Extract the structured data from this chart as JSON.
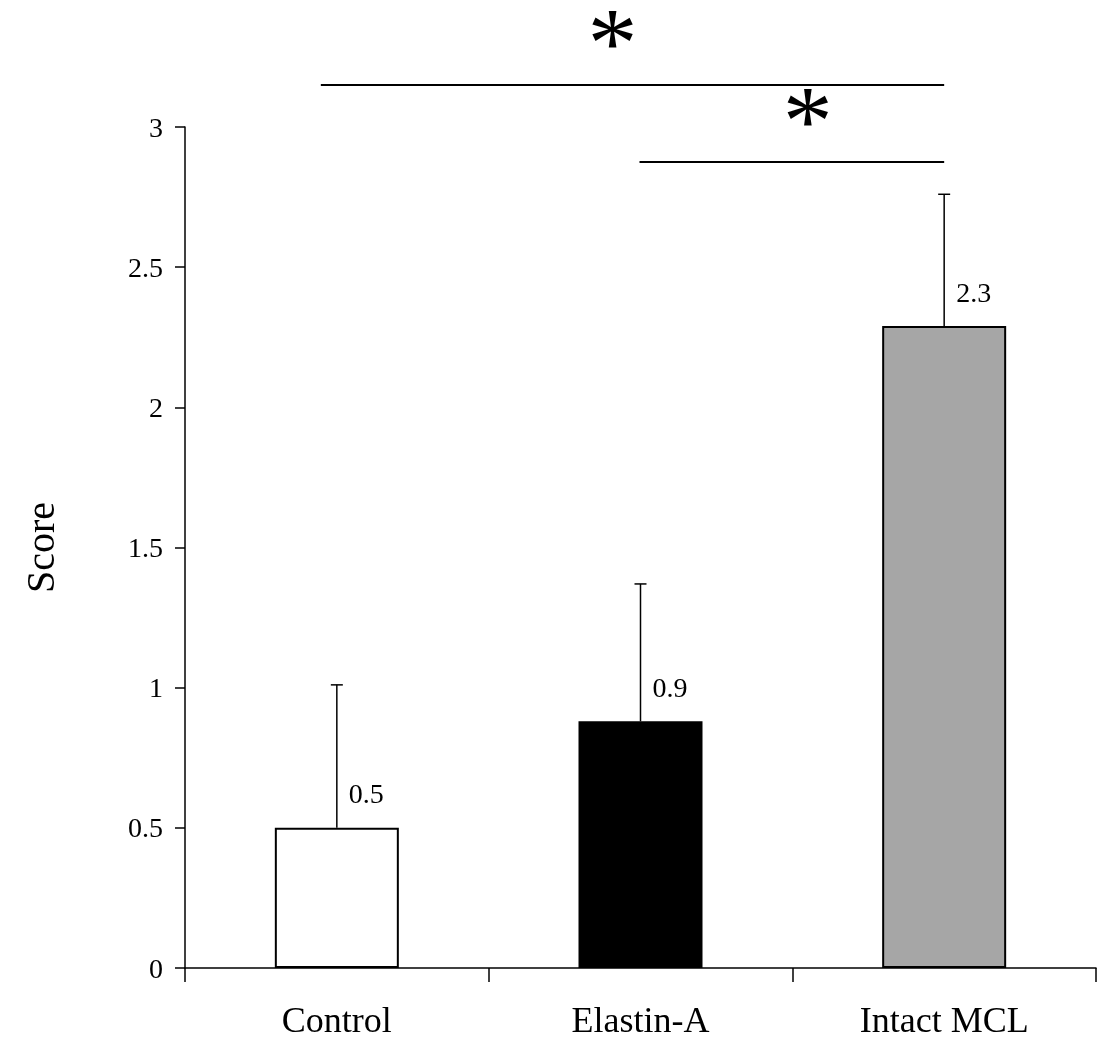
{
  "chart_data": {
    "type": "bar",
    "ylabel": "Score",
    "categories": [
      "Control",
      "Elastin-A",
      "Intact MCL"
    ],
    "values": [
      0.5,
      0.88,
      2.29
    ],
    "colors": [
      "#ffffff",
      "#000000",
      "#a6a6a6"
    ],
    "errors": [
      [
        0.5,
        1.01
      ],
      [
        0.88,
        1.37
      ],
      [
        2.29,
        2.76
      ]
    ],
    "value_labels": [
      "0.5",
      "0.9",
      "2.3"
    ],
    "ylim": [
      0,
      3
    ],
    "yticks": [
      0,
      0.5,
      1,
      1.5,
      2,
      2.5,
      3
    ],
    "grid": false,
    "annotations": [
      "*",
      "*"
    ]
  }
}
